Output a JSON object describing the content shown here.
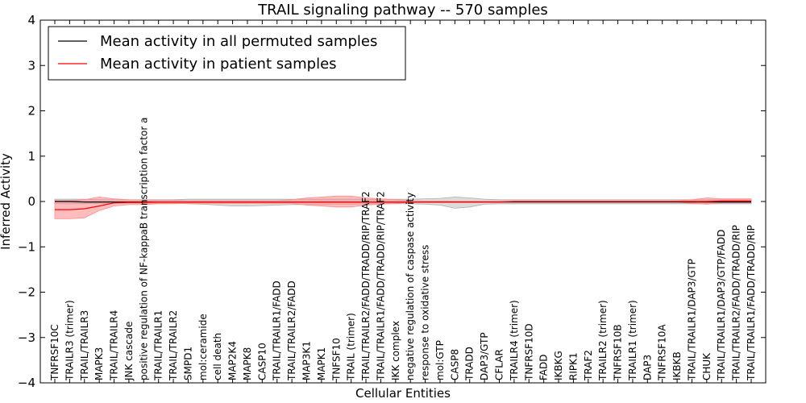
{
  "chart_data": {
    "type": "line",
    "title": "TRAIL signaling pathway -- 570 samples",
    "xlabel": "Cellular Entities",
    "ylabel": "Inferred Activity",
    "ylim": [
      -4,
      4
    ],
    "yticks": [
      4,
      3,
      2,
      1,
      0,
      -1,
      -2,
      -3,
      -4
    ],
    "ytick_labels": [
      "4",
      "3",
      "2",
      "1",
      "0",
      "−1",
      "−2",
      "−3",
      "−4"
    ],
    "grid": false,
    "legend_position": "top-left",
    "categories": [
      "TNFRSF10C",
      "TRAILR3 (trimer)",
      "TRAIL/TRAILR3",
      "MAPK3",
      "TRAIL/TRAILR4",
      "JNK cascade",
      "positive regulation of NF-kappaB transcription factor a",
      "TRAIL/TRAILR1",
      "TRAIL/TRAILR2",
      "SMPD1",
      "mol:ceramide",
      "cell death",
      "MAP2K4",
      "MAPK8",
      "CASP10",
      "TRAIL/TRAILR1/FADD",
      "TRAIL/TRAILR2/FADD",
      "MAP3K1",
      "MAPK1",
      "TNFSF10",
      "TRAIL (trimer)",
      "TRAIL/TRAILR2/FADD/TRADD/RIP/TRAF2",
      "TRAIL/TRAILR1/FADD/TRADD/RIP/TRAF2",
      "IKK complex",
      "negative regulation of caspase activity",
      "response to oxidative stress",
      "mol:GTP",
      "CASP8",
      "TRADD",
      "DAP3/GTP",
      "CFLAR",
      "TRAILR4 (trimer)",
      "TNFRSF10D",
      "FADD",
      "IKBKG",
      "RIPK1",
      "TRAF2",
      "TRAILR2 (trimer)",
      "TNFRSF10B",
      "TRAILR1 (trimer)",
      "DAP3",
      "TNFRSF10A",
      "IKBKB",
      "TRAIL/TRAILR1/DAP3/GTP",
      "CHUK",
      "TRAIL/TRAILR1/DAP3/GTP/FADD",
      "TRAIL/TRAILR2/FADD/TRADD/RIP",
      "TRAIL/TRAILR1/FADD/TRADD/RIP"
    ],
    "series": [
      {
        "name": "Mean activity in all permuted samples",
        "color": "#000000",
        "band_color": "#b0b0b0",
        "values": [
          0.0,
          0.0,
          -0.01,
          -0.01,
          -0.01,
          -0.01,
          -0.01,
          -0.01,
          -0.01,
          -0.01,
          -0.01,
          -0.01,
          -0.01,
          -0.01,
          -0.01,
          -0.01,
          -0.01,
          -0.01,
          -0.01,
          -0.01,
          -0.01,
          -0.01,
          -0.01,
          -0.01,
          -0.01,
          -0.01,
          -0.01,
          -0.01,
          -0.01,
          -0.01,
          -0.01,
          -0.01,
          -0.01,
          -0.01,
          -0.01,
          -0.01,
          -0.01,
          -0.01,
          -0.01,
          -0.01,
          -0.01,
          -0.01,
          -0.01,
          -0.01,
          -0.01,
          -0.01,
          -0.01,
          -0.01
        ],
        "lower": [
          -0.05,
          -0.05,
          -0.05,
          -0.04,
          -0.04,
          -0.04,
          -0.04,
          -0.04,
          -0.04,
          -0.05,
          -0.06,
          -0.08,
          -0.1,
          -0.1,
          -0.09,
          -0.08,
          -0.07,
          -0.07,
          -0.07,
          -0.06,
          -0.06,
          -0.05,
          -0.05,
          -0.05,
          -0.05,
          -0.06,
          -0.08,
          -0.15,
          -0.12,
          -0.06,
          -0.05,
          -0.05,
          -0.05,
          -0.05,
          -0.05,
          -0.05,
          -0.05,
          -0.05,
          -0.05,
          -0.05,
          -0.05,
          -0.05,
          -0.05,
          -0.05,
          -0.05,
          -0.05,
          -0.05,
          -0.05
        ],
        "upper": [
          0.05,
          0.05,
          0.05,
          0.04,
          0.04,
          0.04,
          0.04,
          0.04,
          0.04,
          0.05,
          0.05,
          0.05,
          0.05,
          0.05,
          0.05,
          0.05,
          0.05,
          0.05,
          0.05,
          0.05,
          0.05,
          0.05,
          0.05,
          0.05,
          0.05,
          0.06,
          0.07,
          0.1,
          0.08,
          0.05,
          0.04,
          0.04,
          0.04,
          0.04,
          0.04,
          0.04,
          0.04,
          0.04,
          0.04,
          0.04,
          0.04,
          0.04,
          0.04,
          0.04,
          0.04,
          0.04,
          0.04,
          0.04
        ]
      },
      {
        "name": "Mean activity in patient samples",
        "color": "#ff0000",
        "band_color": "#ff9090",
        "values": [
          -0.18,
          -0.18,
          -0.16,
          -0.1,
          -0.03,
          -0.02,
          -0.02,
          -0.01,
          -0.01,
          -0.01,
          -0.01,
          -0.01,
          -0.01,
          -0.01,
          -0.01,
          -0.01,
          -0.01,
          -0.01,
          -0.01,
          -0.01,
          -0.01,
          -0.01,
          -0.01,
          -0.01,
          -0.01,
          -0.01,
          -0.01,
          -0.01,
          -0.01,
          -0.01,
          -0.01,
          0.0,
          0.0,
          0.0,
          0.0,
          0.0,
          0.0,
          0.0,
          0.0,
          0.0,
          0.0,
          0.0,
          0.0,
          0.0,
          0.0,
          0.01,
          0.01,
          0.01
        ],
        "lower": [
          -0.38,
          -0.38,
          -0.36,
          -0.2,
          -0.1,
          -0.07,
          -0.07,
          -0.05,
          -0.05,
          -0.04,
          -0.04,
          -0.04,
          -0.04,
          -0.04,
          -0.04,
          -0.04,
          -0.04,
          -0.08,
          -0.1,
          -0.12,
          -0.12,
          -0.08,
          -0.06,
          -0.04,
          -0.02,
          -0.01,
          -0.01,
          -0.01,
          -0.01,
          -0.01,
          -0.01,
          -0.01,
          -0.01,
          -0.01,
          -0.01,
          -0.01,
          -0.01,
          -0.01,
          -0.01,
          -0.01,
          -0.01,
          -0.01,
          -0.01,
          -0.04,
          -0.06,
          -0.03,
          -0.03,
          -0.03
        ],
        "upper": [
          0.02,
          0.02,
          0.04,
          0.1,
          0.06,
          0.04,
          0.03,
          0.03,
          0.03,
          0.02,
          0.02,
          0.02,
          0.02,
          0.02,
          0.02,
          0.02,
          0.04,
          0.08,
          0.1,
          0.12,
          0.12,
          0.08,
          0.06,
          0.04,
          0.02,
          0.01,
          0.01,
          0.01,
          0.01,
          0.01,
          0.01,
          0.01,
          0.01,
          0.01,
          0.01,
          0.01,
          0.01,
          0.01,
          0.01,
          0.01,
          0.01,
          0.01,
          0.01,
          0.04,
          0.08,
          0.06,
          0.06,
          0.06
        ]
      }
    ]
  }
}
